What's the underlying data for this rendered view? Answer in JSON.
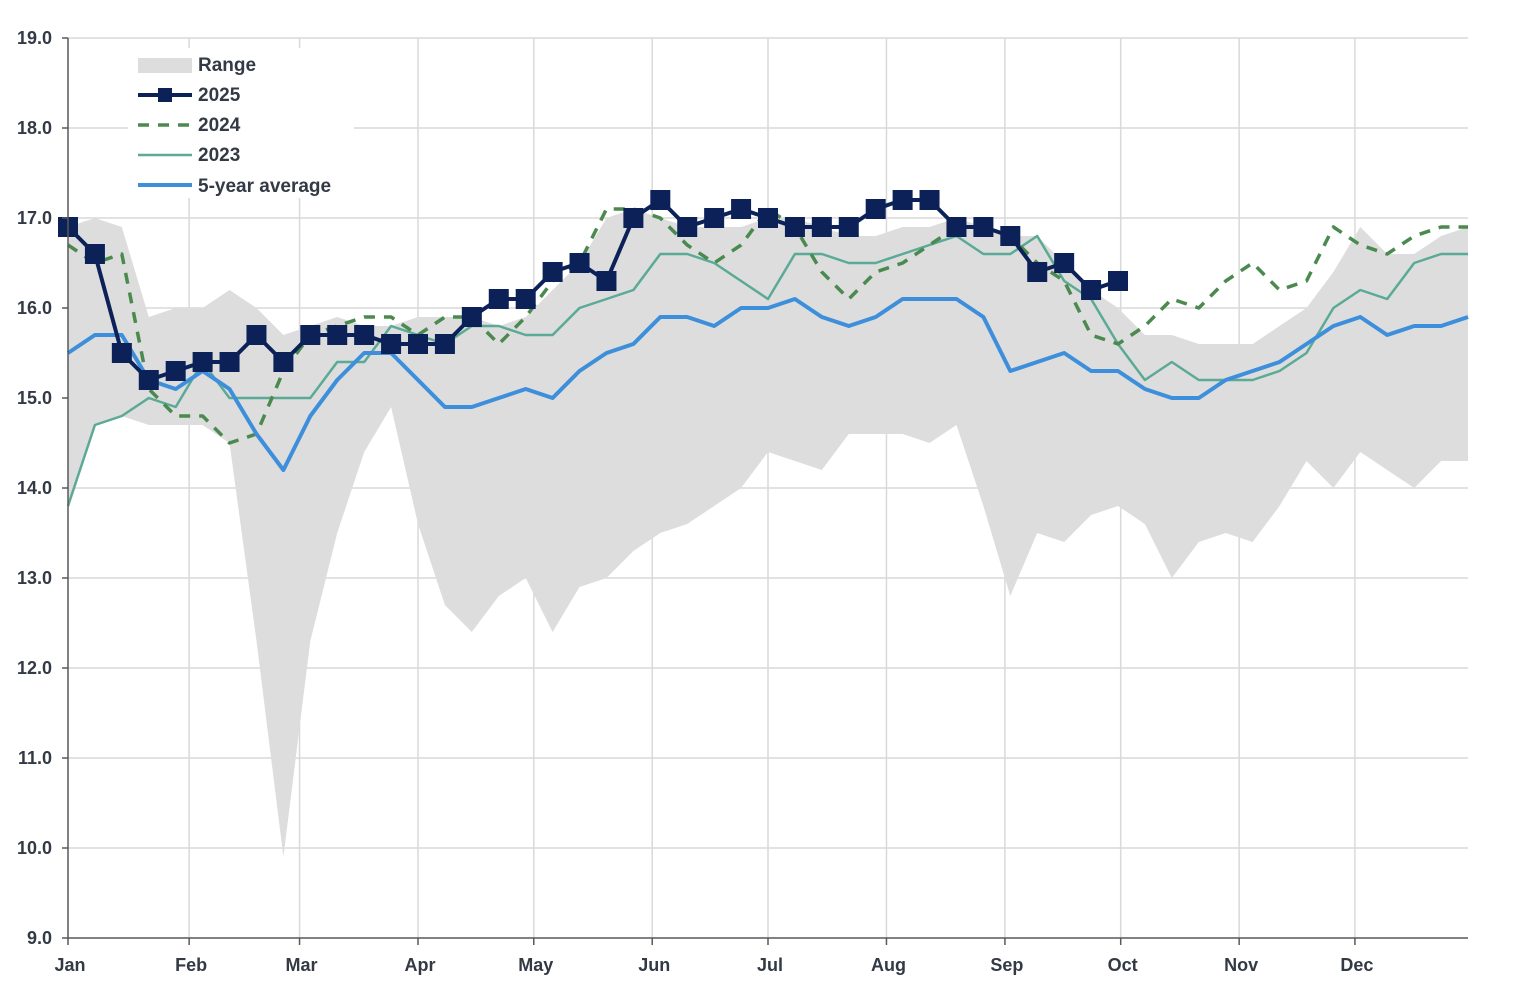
{
  "chart_data": {
    "type": "line",
    "title": "",
    "xlabel": "",
    "ylabel": "",
    "ylim": [
      9.0,
      19.0
    ],
    "yticks": [
      "19.0",
      "18.0",
      "17.0",
      "16.0",
      "15.0",
      "14.0",
      "13.0",
      "12.0",
      "11.0",
      "10.0",
      "9.0"
    ],
    "ytick_values": [
      19,
      18,
      17,
      16,
      15,
      14,
      13,
      12,
      11,
      10,
      9
    ],
    "months": [
      "Jan",
      "Feb",
      "Mar",
      "Apr",
      "May",
      "Jun",
      "Jul",
      "Aug",
      "Sep",
      "Oct",
      "Nov",
      "Dec"
    ],
    "month_weeks": [
      0,
      4.5,
      8.6,
      13,
      17.3,
      21.7,
      26,
      30.4,
      34.8,
      39.1,
      43.5,
      47.8
    ],
    "week_count": 52,
    "grid": true,
    "legend_position": "top-left",
    "colors": {
      "range": "#dddddd",
      "y2025": "#0b2158",
      "y2024": "#4b8a4f",
      "y2023": "#5aaa96",
      "avg": "#3d8fdb",
      "grid": "#d9d9d9",
      "axis": "#595959"
    },
    "legend": {
      "range": "Range",
      "y2025": "2025",
      "y2024": "2024",
      "y2023": "2023",
      "avg": "5-year average"
    },
    "series": [
      {
        "key": "range",
        "name": "Range",
        "x": [
          0,
          1,
          2,
          3,
          4,
          5,
          6,
          7,
          8,
          9,
          10,
          11,
          12,
          13,
          14,
          15,
          16,
          17,
          18,
          19,
          20,
          21,
          22,
          23,
          24,
          25,
          26,
          27,
          28,
          29,
          30,
          31,
          32,
          33,
          34,
          35,
          36,
          37,
          38,
          39,
          40,
          41,
          42,
          43,
          44,
          45,
          46,
          47,
          48,
          49,
          50,
          51,
          52
        ],
        "high": [
          16.9,
          17.0,
          16.9,
          15.9,
          16.0,
          16.0,
          16.2,
          16.0,
          15.7,
          15.8,
          15.9,
          15.8,
          15.8,
          15.9,
          15.9,
          15.9,
          15.8,
          15.9,
          16.2,
          16.5,
          17.0,
          17.1,
          17.0,
          16.9,
          16.9,
          16.9,
          17.0,
          17.0,
          16.9,
          16.8,
          16.8,
          16.9,
          16.9,
          17.0,
          16.9,
          16.8,
          16.8,
          16.5,
          16.2,
          16.0,
          15.7,
          15.7,
          15.6,
          15.6,
          15.6,
          15.8,
          16.0,
          16.4,
          16.9,
          16.6,
          16.6,
          16.8,
          16.9
        ],
        "low": [
          13.8,
          14.7,
          14.8,
          14.7,
          14.7,
          14.7,
          14.5,
          12.3,
          9.9,
          12.3,
          13.5,
          14.4,
          14.9,
          13.6,
          12.7,
          12.4,
          12.8,
          13.0,
          12.4,
          12.9,
          13.0,
          13.3,
          13.5,
          13.6,
          13.8,
          14.0,
          14.4,
          14.3,
          14.2,
          14.6,
          14.6,
          14.6,
          14.5,
          14.7,
          13.8,
          12.8,
          13.5,
          13.4,
          13.7,
          13.8,
          13.6,
          13.0,
          13.4,
          13.5,
          13.4,
          13.8,
          14.3,
          14.0,
          14.4,
          14.2,
          14.0,
          14.3,
          14.3
        ]
      },
      {
        "key": "y2024",
        "name": "2024",
        "x": [
          0,
          1,
          2,
          3,
          4,
          5,
          6,
          7,
          8,
          9,
          10,
          11,
          12,
          13,
          14,
          15,
          16,
          17,
          18,
          19,
          20,
          21,
          22,
          23,
          24,
          25,
          26,
          27,
          28,
          29,
          30,
          31,
          32,
          33,
          34,
          35,
          36,
          37,
          38,
          39,
          40,
          41,
          42,
          43,
          44,
          45,
          46,
          47,
          48,
          49,
          50,
          51,
          52
        ],
        "values": [
          16.7,
          16.5,
          16.6,
          15.1,
          14.8,
          14.8,
          14.5,
          14.6,
          15.3,
          15.7,
          15.8,
          15.9,
          15.9,
          15.7,
          15.9,
          15.9,
          15.6,
          15.9,
          16.3,
          16.5,
          17.1,
          17.1,
          17.0,
          16.7,
          16.5,
          16.7,
          17.1,
          16.9,
          16.4,
          16.1,
          16.4,
          16.5,
          16.7,
          16.9,
          16.9,
          16.8,
          16.5,
          16.3,
          15.7,
          15.6,
          15.8,
          16.1,
          16.0,
          16.3,
          16.5,
          16.2,
          16.3,
          16.9,
          16.7,
          16.6,
          16.8,
          16.9,
          16.9
        ]
      },
      {
        "key": "y2023",
        "name": "2023",
        "x": [
          0,
          1,
          2,
          3,
          4,
          5,
          6,
          7,
          8,
          9,
          10,
          11,
          12,
          13,
          14,
          15,
          16,
          17,
          18,
          19,
          20,
          21,
          22,
          23,
          24,
          25,
          26,
          27,
          28,
          29,
          30,
          31,
          32,
          33,
          34,
          35,
          36,
          37,
          38,
          39,
          40,
          41,
          42,
          43,
          44,
          45,
          46,
          47,
          48,
          49,
          50,
          51,
          52
        ],
        "values": [
          13.8,
          14.7,
          14.8,
          15.0,
          14.9,
          15.4,
          15.0,
          15.0,
          15.0,
          15.0,
          15.4,
          15.4,
          15.8,
          15.7,
          15.6,
          15.8,
          15.8,
          15.7,
          15.7,
          16.0,
          16.1,
          16.2,
          16.6,
          16.6,
          16.5,
          16.3,
          16.1,
          16.6,
          16.6,
          16.5,
          16.5,
          16.6,
          16.7,
          16.8,
          16.6,
          16.6,
          16.8,
          16.3,
          16.1,
          15.6,
          15.2,
          15.4,
          15.2,
          15.2,
          15.2,
          15.3,
          15.5,
          16.0,
          16.2,
          16.1,
          16.5,
          16.6,
          16.6
        ]
      },
      {
        "key": "avg",
        "name": "5-year average",
        "x": [
          0,
          1,
          2,
          3,
          4,
          5,
          6,
          7,
          8,
          9,
          10,
          11,
          12,
          13,
          14,
          15,
          16,
          17,
          18,
          19,
          20,
          21,
          22,
          23,
          24,
          25,
          26,
          27,
          28,
          29,
          30,
          31,
          32,
          33,
          34,
          35,
          36,
          37,
          38,
          39,
          40,
          41,
          42,
          43,
          44,
          45,
          46,
          47,
          48,
          49,
          50,
          51,
          52
        ],
        "values": [
          15.5,
          15.7,
          15.7,
          15.2,
          15.1,
          15.3,
          15.1,
          14.6,
          14.2,
          14.8,
          15.2,
          15.5,
          15.5,
          15.2,
          14.9,
          14.9,
          15.0,
          15.1,
          15.0,
          15.3,
          15.5,
          15.6,
          15.9,
          15.9,
          15.8,
          16.0,
          16.0,
          16.1,
          15.9,
          15.8,
          15.9,
          16.1,
          16.1,
          16.1,
          15.9,
          15.3,
          15.4,
          15.5,
          15.3,
          15.3,
          15.1,
          15.0,
          15.0,
          15.2,
          15.3,
          15.4,
          15.6,
          15.8,
          15.9,
          15.7,
          15.8,
          15.8,
          15.9
        ]
      },
      {
        "key": "y2025",
        "name": "2025",
        "x": [
          0,
          1,
          2,
          3,
          4,
          5,
          6,
          7,
          8,
          9,
          10,
          11,
          12,
          13,
          14,
          15,
          16,
          17,
          18,
          19,
          20,
          21,
          22,
          23,
          24,
          25,
          26,
          27,
          28,
          29,
          30,
          31,
          32,
          33,
          34,
          35,
          36,
          37,
          38,
          39
        ],
        "values": [
          16.9,
          16.6,
          15.5,
          15.2,
          15.3,
          15.4,
          15.4,
          15.7,
          15.4,
          15.7,
          15.7,
          15.7,
          15.6,
          15.6,
          15.6,
          15.9,
          16.1,
          16.1,
          16.4,
          16.5,
          16.3,
          17.0,
          17.2,
          16.9,
          17.0,
          17.1,
          17.0,
          16.9,
          16.9,
          16.9,
          17.1,
          17.2,
          17.2,
          16.9,
          16.9,
          16.8,
          16.4,
          16.5,
          16.2,
          16.3
        ]
      }
    ]
  }
}
